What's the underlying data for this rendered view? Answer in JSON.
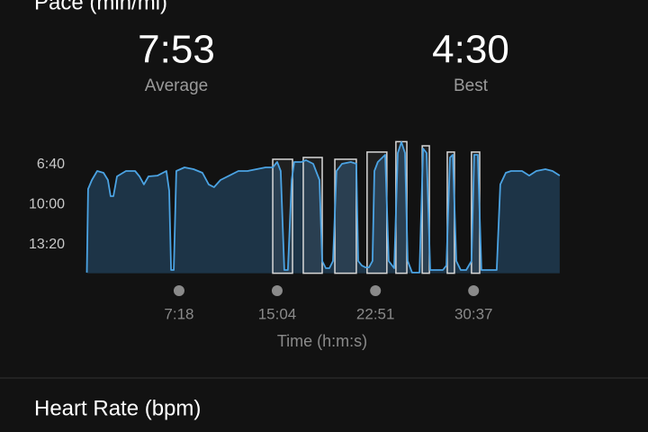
{
  "header": {
    "title": "Pace (min/mi)"
  },
  "stats": [
    {
      "value": "7:53",
      "label": "Average"
    },
    {
      "value": "4:30",
      "label": "Best"
    }
  ],
  "chart_data": {
    "type": "line",
    "x": [
      0,
      6,
      24,
      49,
      79,
      100,
      113,
      126,
      143,
      186,
      229,
      250,
      271,
      293,
      336,
      378,
      391,
      400,
      413,
      425,
      464,
      507,
      549,
      579,
      604,
      635,
      677,
      720,
      763,
      806,
      849,
      883,
      904,
      921,
      938,
      955,
      973,
      985,
      1019,
      1041,
      1075,
      1105,
      1118,
      1135,
      1152,
      1169,
      1186,
      1212,
      1254,
      1280,
      1289,
      1306,
      1323,
      1340,
      1357,
      1366,
      1382,
      1417,
      1434,
      1460,
      1477,
      1494,
      1511,
      1524,
      1545,
      1580,
      1597,
      1614,
      1631,
      1657,
      1691,
      1708,
      1725,
      1738,
      1755,
      1776,
      1802,
      1827,
      1840,
      1857,
      1874,
      1947,
      1964,
      1990,
      2015,
      2067,
      2101,
      2135,
      2178,
      2212,
      2246
    ],
    "series": [
      {
        "name": "Pace",
        "color": "#4ba3e3",
        "values": [
          15.65,
          8.69,
          7.94,
          7.19,
          7.34,
          7.94,
          9.29,
          9.29,
          7.64,
          7.19,
          7.19,
          7.64,
          8.31,
          7.64,
          7.57,
          7.19,
          8.84,
          15.43,
          15.43,
          7.19,
          6.89,
          7.04,
          7.34,
          8.31,
          8.54,
          7.94,
          7.57,
          7.19,
          7.19,
          7.04,
          6.89,
          6.89,
          6.44,
          7.19,
          15.43,
          15.43,
          7.94,
          6.44,
          6.44,
          6.29,
          6.59,
          7.94,
          14.68,
          15.28,
          15.28,
          14.68,
          7.19,
          6.59,
          6.44,
          6.59,
          14.68,
          15.06,
          15.21,
          15.21,
          14.68,
          7.19,
          6.44,
          5.84,
          14.68,
          15.28,
          5.69,
          4.79,
          5.69,
          14.68,
          15.65,
          15.65,
          5.32,
          5.69,
          15.43,
          15.43,
          15.43,
          15.06,
          6.07,
          5.84,
          14.68,
          15.43,
          15.43,
          14.68,
          5.84,
          5.84,
          15.43,
          15.43,
          8.31,
          7.34,
          7.19,
          7.19,
          7.57,
          7.19,
          7.04,
          7.19,
          7.57
        ]
      }
    ],
    "intervals": [
      [
        883,
        977
      ],
      [
        1028,
        1118
      ],
      [
        1178,
        1280
      ],
      [
        1331,
        1425
      ],
      [
        1468,
        1520
      ],
      [
        1593,
        1627
      ],
      [
        1712,
        1746
      ],
      [
        1827,
        1866
      ]
    ],
    "xlim": [
      0,
      2270
    ],
    "ylim": [
      15.7,
      4.75
    ],
    "yticks": [
      {
        "value": 6.667,
        "label": "6:40"
      },
      {
        "value": 10,
        "label": "10:00"
      },
      {
        "value": 13.333,
        "label": "13:20"
      }
    ],
    "xticks": [
      {
        "value": 438,
        "label": "7:18"
      },
      {
        "value": 904,
        "label": "15:04"
      },
      {
        "value": 1371,
        "label": "22:51"
      },
      {
        "value": 1837,
        "label": "30:37"
      }
    ],
    "x_label": "Time (h:m:s)"
  },
  "next_section": {
    "title": "Heart Rate (bpm)"
  }
}
